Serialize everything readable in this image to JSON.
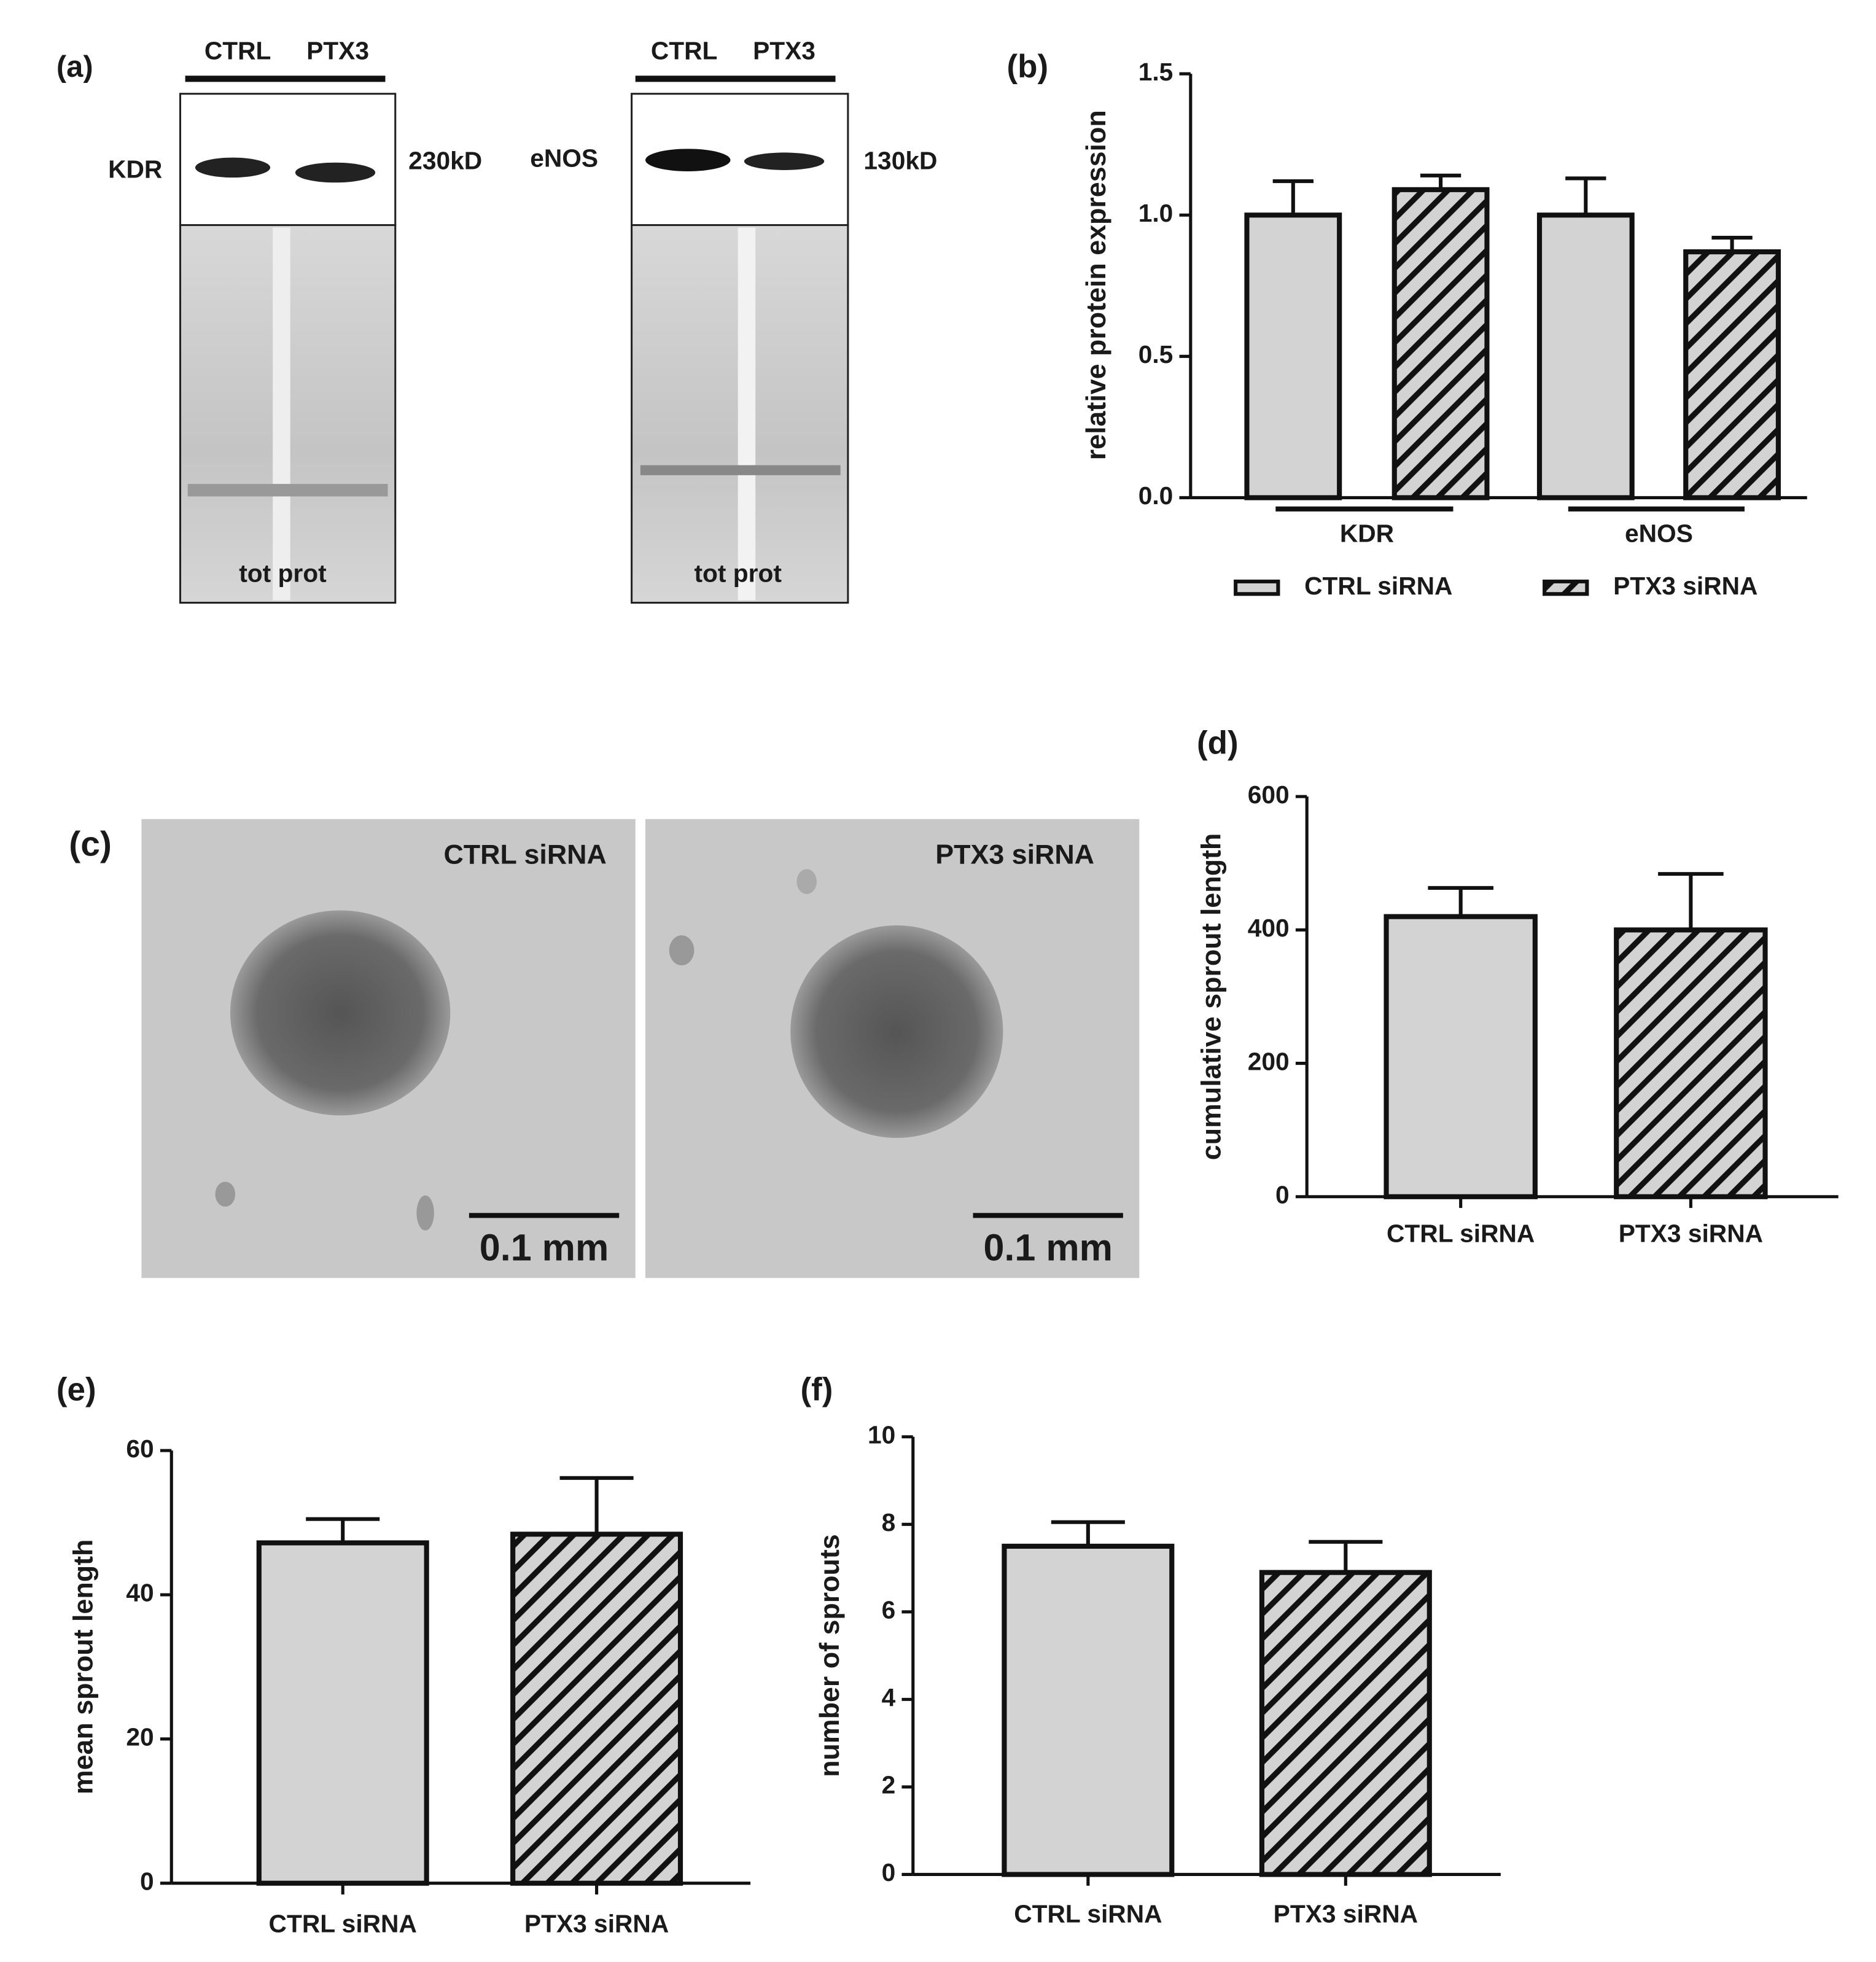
{
  "blots": {
    "label": "(a)",
    "left": {
      "lanes": [
        "CTRL",
        "PTX3"
      ],
      "protein": "KDR",
      "size": "230kD",
      "stain": "tot prot"
    },
    "right": {
      "lanes": [
        "CTRL",
        "PTX3"
      ],
      "protein": "eNOS",
      "size": "130kD",
      "stain": "tot prot"
    }
  },
  "micrographs": {
    "label": "(c)",
    "images": [
      {
        "caption": "CTRL siRNA",
        "scale": "0.1 mm"
      },
      {
        "caption": "PTX3 siRNA",
        "scale": "0.1 mm"
      }
    ]
  },
  "chart_data": [
    {
      "type": "bar",
      "label": "(b)",
      "y_label": "relative protein expression",
      "categories": [
        "KDR",
        "eNOS"
      ],
      "series": [
        {
          "name": "CTRL siRNA",
          "color": "#d3d3d3",
          "hatch": false,
          "values": [
            1.0,
            1.0
          ],
          "errors": [
            0.12,
            0.13
          ]
        },
        {
          "name": "PTX3 siRNA",
          "color": "#d3d3d3",
          "hatch": true,
          "values": [
            1.09,
            0.87
          ],
          "errors": [
            0.05,
            0.05
          ]
        }
      ],
      "ylim": [
        0,
        1.5
      ],
      "yticks": [
        {
          "value": 0,
          "label": "0.0"
        },
        0.5,
        {
          "value": 1,
          "label": "1.0"
        },
        1.5
      ],
      "legend": "bottom"
    },
    {
      "type": "bar",
      "label": "(d)",
      "y_label": "cumulative sprout length",
      "categories": [
        "CTRL siRNA",
        "PTX3 siRNA"
      ],
      "values": [
        420,
        400
      ],
      "errors": [
        43,
        84
      ],
      "color": "#d3d3d3",
      "hatch": [
        false,
        true
      ],
      "ylim": [
        0,
        600
      ],
      "yticks": [
        0,
        200,
        400,
        600
      ]
    },
    {
      "type": "bar",
      "label": "(e)",
      "y_label": "mean sprout length",
      "categories": [
        "CTRL siRNA",
        "PTX3 siRNA"
      ],
      "values": [
        47.2,
        48.4
      ],
      "errors": [
        3.3,
        7.8
      ],
      "color": "#d3d3d3",
      "hatch": [
        false,
        true
      ],
      "ylim": [
        0,
        60
      ],
      "yticks": [
        0,
        20,
        40,
        60
      ]
    },
    {
      "type": "bar",
      "label": "(f)",
      "y_label": "number of sprouts",
      "categories": [
        "CTRL siRNA",
        "PTX3 siRNA"
      ],
      "values": [
        7.5,
        6.9
      ],
      "errors": [
        0.55,
        0.7
      ],
      "color": "#d3d3d3",
      "hatch": [
        false,
        true
      ],
      "ylim": [
        0,
        10
      ],
      "yticks": [
        0,
        2,
        4,
        6,
        8,
        10
      ]
    }
  ]
}
